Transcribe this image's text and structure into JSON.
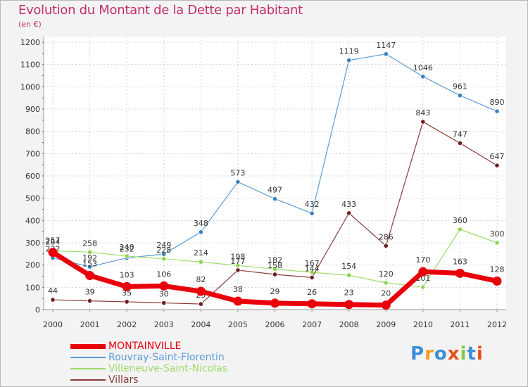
{
  "title": "Evolution du Montant de la Dette par Habitant",
  "unit": "(en €)",
  "logo": {
    "text": "Proxiti"
  },
  "chart_data": {
    "type": "line",
    "title": "Evolution du Montant de la Dette par Habitant",
    "ylabel": "(en €)",
    "xlabel": "",
    "x": [
      2000,
      2001,
      2002,
      2003,
      2004,
      2005,
      2006,
      2007,
      2008,
      2009,
      2010,
      2011,
      2012
    ],
    "ylim": [
      0,
      1200
    ],
    "yticks": [
      0,
      100,
      200,
      300,
      400,
      500,
      600,
      700,
      800,
      900,
      1000,
      1100,
      1200
    ],
    "grid": true,
    "legend_position": "bottom-left",
    "series": [
      {
        "name": "Rouvray-Saint-Florentin",
        "color": "#5b9bd5",
        "dot": "#3a7fc0",
        "width": 1.2,
        "values": [
          232,
          192,
          232,
          249,
          348,
          573,
          497,
          432,
          1119,
          1147,
          1046,
          961,
          890
        ]
      },
      {
        "name": "Villeneuve-Saint-Nicolas",
        "color": "#9ddc6b",
        "dot": "#8ed44f",
        "width": 1.2,
        "values": [
          264,
          258,
          240,
          228,
          214,
          198,
          182,
          167,
          154,
          120,
          101,
          360,
          300
        ]
      },
      {
        "name": "Villars",
        "color": "#8b3a3a",
        "dot": "#6b1f1f",
        "width": 1.2,
        "values": [
          44,
          39,
          35,
          30,
          25,
          177,
          158,
          144,
          433,
          286,
          843,
          747,
          647
        ]
      },
      {
        "name": "MONTAINVILLE",
        "color": "#e8000b",
        "dot": "#e8000b",
        "width": 7,
        "values": [
          257,
          153,
          103,
          106,
          82,
          38,
          29,
          26,
          23,
          20,
          170,
          163,
          128
        ]
      }
    ],
    "legend_order": [
      "MONTAINVILLE",
      "Rouvray-Saint-Florentin",
      "Villeneuve-Saint-Nicolas",
      "Villars"
    ]
  }
}
